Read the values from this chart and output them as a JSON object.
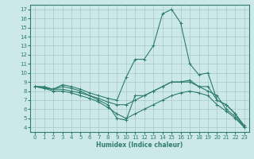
{
  "xlabel": "Humidex (Indice chaleur)",
  "ylabel": "",
  "background_color": "#cce8e8",
  "grid_color": "#a8c8c8",
  "line_color": "#2e7d6e",
  "xlim": [
    -0.5,
    23.5
  ],
  "ylim": [
    3.5,
    17.5
  ],
  "xticks": [
    0,
    1,
    2,
    3,
    4,
    5,
    6,
    7,
    8,
    9,
    10,
    11,
    12,
    13,
    14,
    15,
    16,
    17,
    18,
    19,
    20,
    21,
    22,
    23
  ],
  "yticks": [
    4,
    5,
    6,
    7,
    8,
    9,
    10,
    11,
    12,
    13,
    14,
    15,
    16,
    17
  ],
  "lines": [
    {
      "x": [
        0,
        1,
        2,
        3,
        4,
        5,
        6,
        7,
        8,
        9,
        10,
        11,
        12,
        13,
        14,
        15,
        16,
        17,
        18,
        19,
        20,
        21,
        22,
        23
      ],
      "y": [
        8.5,
        8.5,
        8.2,
        8.7,
        8.5,
        8.2,
        7.8,
        7.5,
        7.2,
        7.0,
        9.5,
        11.5,
        11.5,
        13.0,
        16.5,
        17.0,
        15.5,
        11.0,
        9.8,
        10.0,
        7.0,
        6.5,
        5.5,
        4.0
      ]
    },
    {
      "x": [
        0,
        1,
        2,
        3,
        4,
        5,
        6,
        7,
        8,
        9,
        10,
        11,
        12,
        13,
        14,
        15,
        16,
        17,
        18,
        19,
        20,
        21,
        22,
        23
      ],
      "y": [
        8.5,
        8.3,
        8.2,
        8.2,
        8.0,
        7.8,
        7.5,
        7.2,
        6.8,
        6.5,
        6.5,
        7.0,
        7.5,
        8.0,
        8.5,
        9.0,
        9.0,
        9.0,
        8.5,
        8.5,
        7.0,
        6.5,
        5.5,
        4.2
      ]
    },
    {
      "x": [
        0,
        1,
        2,
        3,
        4,
        5,
        6,
        7,
        8,
        9,
        10,
        11,
        12,
        13,
        14,
        15,
        16,
        17,
        18,
        19,
        20,
        21,
        22,
        23
      ],
      "y": [
        8.5,
        8.4,
        8.2,
        8.5,
        8.3,
        8.0,
        7.5,
        7.0,
        6.5,
        5.0,
        4.8,
        7.5,
        7.5,
        8.0,
        8.5,
        9.0,
        9.0,
        9.2,
        8.5,
        8.0,
        7.5,
        6.0,
        5.2,
        4.0
      ]
    },
    {
      "x": [
        0,
        1,
        2,
        3,
        4,
        5,
        6,
        7,
        8,
        9,
        10,
        11,
        12,
        13,
        14,
        15,
        16,
        17,
        18,
        19,
        20,
        21,
        22,
        23
      ],
      "y": [
        8.5,
        8.3,
        8.0,
        8.0,
        7.8,
        7.5,
        7.2,
        6.8,
        6.2,
        5.5,
        5.0,
        5.5,
        6.0,
        6.5,
        7.0,
        7.5,
        7.8,
        8.0,
        7.8,
        7.5,
        6.5,
        5.8,
        5.0,
        4.0
      ]
    }
  ]
}
